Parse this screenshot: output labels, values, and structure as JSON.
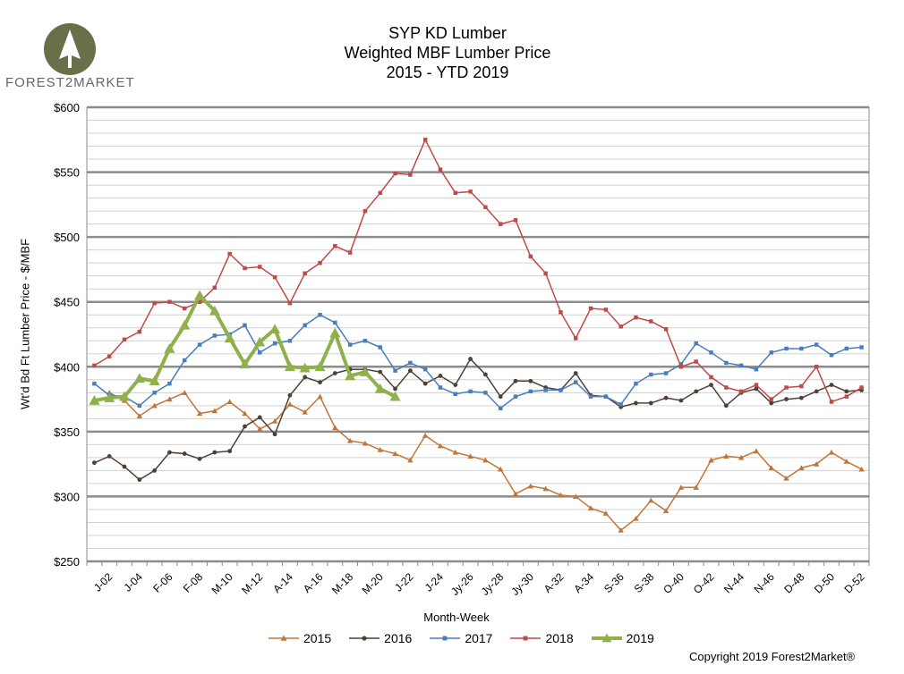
{
  "title_lines": [
    "SYP KD Lumber",
    "Weighted MBF Lumber Price",
    "2015 - YTD 2019"
  ],
  "logo": {
    "text": "FOREST2MARKET",
    "icon": "tree-icon"
  },
  "copyright": "Copyright 2019 Forest2Market®",
  "chart_data": {
    "type": "line",
    "title": "SYP KD Lumber Weighted MBF Lumber Price 2015 - YTD 2019",
    "xlabel": "Month-Week",
    "ylabel": "Wt'd Bd Ft Lumber Price - $/MBF",
    "ylim": [
      250,
      600
    ],
    "y_ticks": [
      "$250",
      "$300",
      "$350",
      "$400",
      "$450",
      "$500",
      "$550",
      "$600"
    ],
    "y_tick_values": [
      250,
      300,
      350,
      400,
      450,
      500,
      550,
      600
    ],
    "x_weeks": [
      1,
      2,
      3,
      4,
      5,
      6,
      7,
      8,
      9,
      10,
      11,
      12,
      13,
      14,
      15,
      16,
      17,
      18,
      19,
      20,
      21,
      22,
      23,
      24,
      25,
      26,
      27,
      28,
      29,
      30,
      31,
      32,
      33,
      34,
      35,
      36,
      37,
      38,
      39,
      40,
      41,
      42,
      43,
      44,
      45,
      46,
      47,
      48,
      49,
      50,
      51,
      52
    ],
    "x_tick_labels": [
      "J-02",
      "J-04",
      "F-06",
      "F-08",
      "M-10",
      "M-12",
      "A-14",
      "A-16",
      "M-18",
      "M-20",
      "J-22",
      "J-24",
      "Jy-26",
      "Jy-28",
      "Jy-30",
      "A-32",
      "A-34",
      "S-36",
      "S-38",
      "O-40",
      "O-42",
      "N-44",
      "N-46",
      "D-48",
      "D-50",
      "D-52"
    ],
    "x_tick_weeks": [
      2,
      4,
      6,
      8,
      10,
      12,
      14,
      16,
      18,
      20,
      22,
      24,
      26,
      28,
      30,
      32,
      34,
      36,
      38,
      40,
      42,
      44,
      46,
      48,
      50,
      52
    ],
    "grid": true,
    "legend_position": "bottom",
    "series": [
      {
        "name": "2015",
        "color": "#c0763a",
        "marker": "triangle",
        "values": [
          null,
          380,
          374,
          362,
          370,
          375,
          380,
          364,
          366,
          373,
          364,
          352,
          358,
          371,
          365,
          377,
          353,
          343,
          341,
          336,
          333,
          328,
          347,
          339,
          334,
          331,
          328,
          321,
          302,
          308,
          306,
          301,
          300,
          291,
          287,
          274,
          283,
          297,
          289,
          307,
          307,
          328,
          331,
          330,
          335,
          322,
          314,
          322,
          325,
          334,
          327,
          321
        ]
      },
      {
        "name": "2016",
        "color": "#4f4036",
        "marker": "circle",
        "values": [
          326,
          331,
          323,
          313,
          320,
          334,
          333,
          329,
          334,
          335,
          354,
          361,
          348,
          378,
          392,
          388,
          395,
          398,
          398,
          396,
          383,
          397,
          387,
          393,
          386,
          406,
          394,
          377,
          389,
          389,
          384,
          382,
          395,
          378,
          377,
          369,
          372,
          372,
          376,
          374,
          381,
          386,
          370,
          380,
          383,
          372,
          375,
          376,
          381,
          386,
          381,
          382
        ]
      },
      {
        "name": "2017",
        "color": "#4a7ebb",
        "marker": "square",
        "values": [
          387,
          378,
          377,
          370,
          380,
          387,
          405,
          417,
          424,
          425,
          432,
          411,
          418,
          420,
          432,
          440,
          434,
          417,
          420,
          415,
          397,
          403,
          398,
          384,
          379,
          381,
          380,
          368,
          377,
          381,
          382,
          382,
          388,
          377,
          377,
          371,
          387,
          394,
          395,
          402,
          418,
          411,
          403,
          401,
          398,
          411,
          414,
          414,
          417,
          409,
          414,
          415
        ]
      },
      {
        "name": "2018",
        "color": "#be4b48",
        "marker": "square",
        "values": [
          401,
          408,
          421,
          427,
          449,
          450,
          445,
          450,
          461,
          487,
          476,
          477,
          469,
          449,
          472,
          480,
          493,
          488,
          520,
          534,
          549,
          548,
          575,
          552,
          534,
          535,
          523,
          510,
          513,
          485,
          472,
          442,
          422,
          445,
          444,
          431,
          438,
          435,
          429,
          400,
          404,
          392,
          384,
          381,
          386,
          375,
          384,
          385,
          400,
          373,
          377,
          384
        ]
      },
      {
        "name": "2019",
        "color": "#8fb04b",
        "marker": "triangle",
        "values": [
          374,
          376,
          377,
          391,
          389,
          414,
          432,
          455,
          443,
          422,
          402,
          419,
          429,
          400,
          399,
          400,
          426,
          393,
          396,
          383,
          377
        ]
      }
    ]
  }
}
